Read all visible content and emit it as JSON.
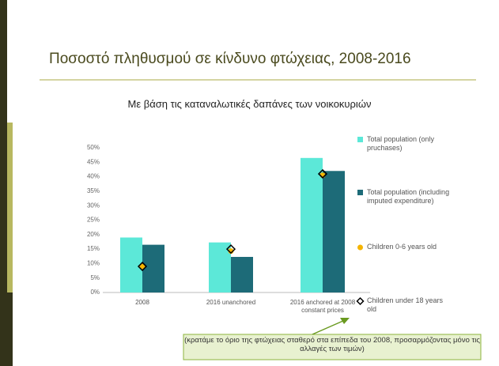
{
  "title": "Ποσοστό πληθυσμού σε κίνδυνο φτώχειας, 2008-2016",
  "note": "(κρατάμε το όριο της φτώχειας σταθερό στα επίπεδα του 2008, προσαρμόζοντας μόνο τις αλλαγές των τιμών)",
  "chart_data": {
    "type": "bar",
    "subtitle": "Με βάση τις καταναλωτικές δαπάνες των νοικοκυριών",
    "categories": [
      "2008",
      "2016 unanchored",
      "2016  anchored at 2008 constant prices"
    ],
    "series": [
      {
        "name": "Total population (only pruchases)",
        "color": "#5ce8d8",
        "kind": "bar",
        "values": [
          19,
          17.3,
          46.5
        ]
      },
      {
        "name": "Total population (including imputed expenditure)",
        "color": "#1d6b78",
        "kind": "bar",
        "values": [
          16.5,
          12.3,
          42
        ]
      },
      {
        "name": "Children 0-6 years old",
        "color": "#f5b400",
        "kind": "circle",
        "values": [
          9,
          14.3,
          40.5
        ]
      },
      {
        "name": "Children under 18 years old",
        "color": "#000000",
        "kind": "diamond",
        "values": [
          9,
          15,
          41
        ]
      }
    ],
    "ylim": [
      0,
      50
    ],
    "yticks": [
      {
        "value": 0,
        "label": "0%"
      },
      {
        "value": 5,
        "label": "5%"
      },
      {
        "value": 10,
        "label": "10%"
      },
      {
        "value": 15,
        "label": "15%"
      },
      {
        "value": 20,
        "label": "20%"
      },
      {
        "value": 25,
        "label": "25%"
      },
      {
        "value": 30,
        "label": "30%"
      },
      {
        "value": 35,
        "label": "35%"
      },
      {
        "value": 40,
        "label": "40%"
      },
      {
        "value": 45,
        "label": "45%"
      },
      {
        "value": 50,
        "label": "50%"
      }
    ]
  }
}
